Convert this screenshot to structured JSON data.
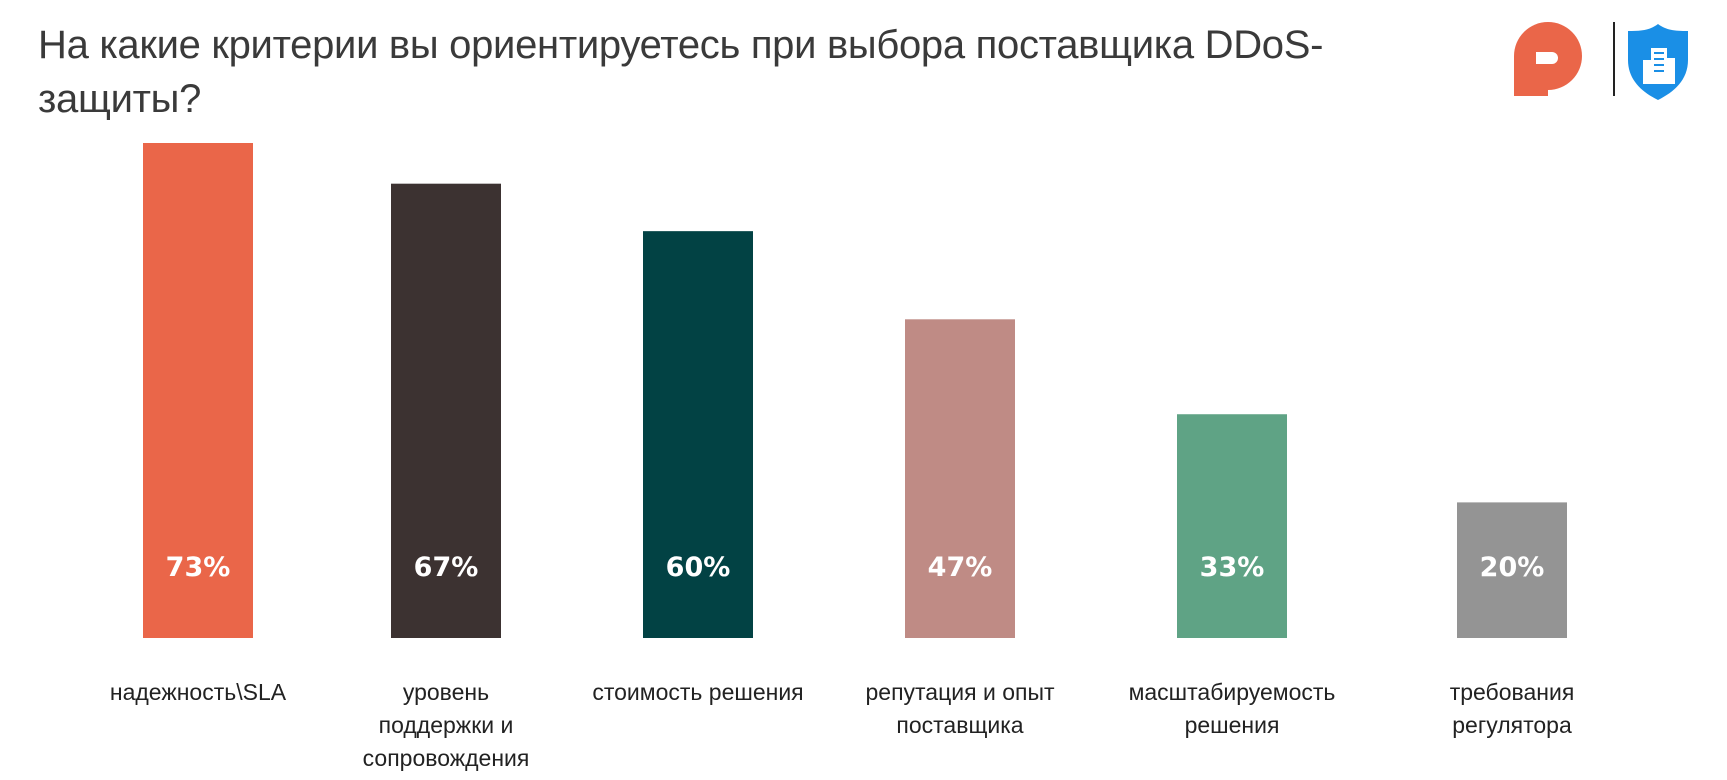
{
  "title": "На какие критерии вы ориентируетесь при выбора поставщика DDoS-защиты?",
  "logos": {
    "left_icon": "orange-p-logo-icon",
    "right_icon": "blue-shield-logo-icon"
  },
  "colors": {
    "text": "#3a3a3a",
    "value_label": "#ffffff"
  },
  "chart_data": {
    "type": "bar",
    "title": "На какие критерии вы ориентируетесь при выбора поставщика DDoS-защиты?",
    "categories": [
      "надежность\\SLA",
      "уровень поддержки и сопровождения",
      "стоимость решения",
      "репутация и опыт поставщика",
      "масштабируемость решения",
      "требования регулятора"
    ],
    "values": [
      73,
      67,
      60,
      47,
      33,
      20
    ],
    "value_labels": [
      "73%",
      "67%",
      "60%",
      "47%",
      "33%",
      "20%"
    ],
    "colors": [
      "#ea6649",
      "#3c3231",
      "#024244",
      "#bf8b85",
      "#5fa385",
      "#949494"
    ],
    "unit": "%",
    "xlabel": "",
    "ylabel": "",
    "ylim": [
      0,
      73
    ],
    "grid": false,
    "legend": "none"
  }
}
